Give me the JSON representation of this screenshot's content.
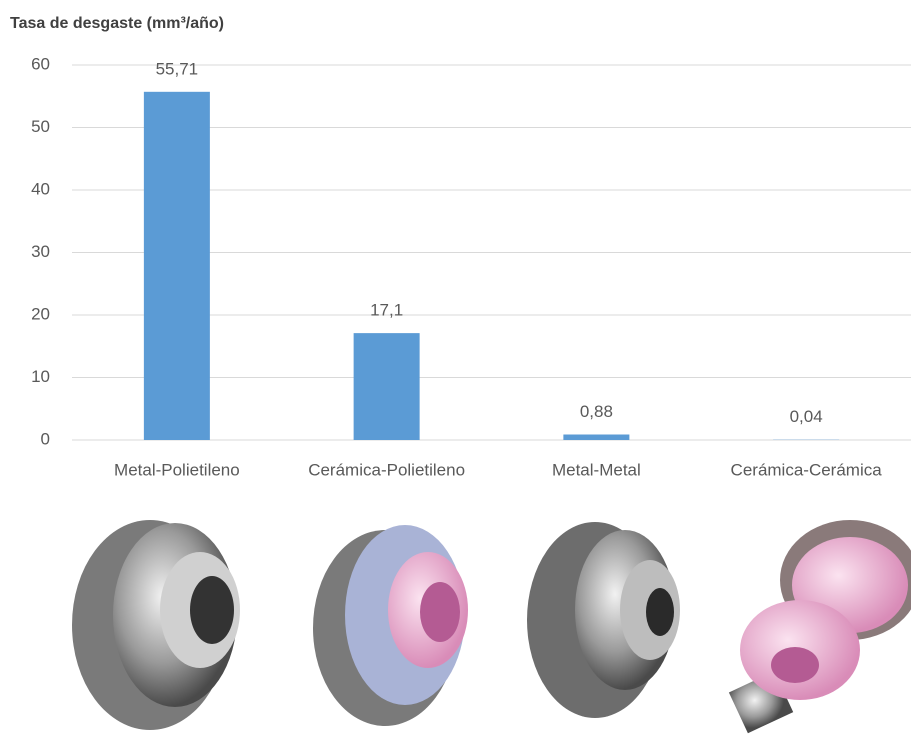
{
  "chart_data": {
    "type": "bar",
    "title": "Tasa de desgaste (mm³/año)",
    "categories": [
      "Metal-Polietileno",
      "Cerámica-Polietileno",
      "Metal-Metal",
      "Cerámica-Cerámica"
    ],
    "values": [
      55.71,
      17.1,
      0.88,
      0.04
    ],
    "value_labels": [
      "55,71",
      "17,1",
      "0,88",
      "0,04"
    ],
    "color": "#5b9bd5",
    "ylim": [
      0,
      60
    ],
    "yticks": [
      0,
      10,
      20,
      30,
      40,
      50,
      60
    ],
    "grid": true
  }
}
